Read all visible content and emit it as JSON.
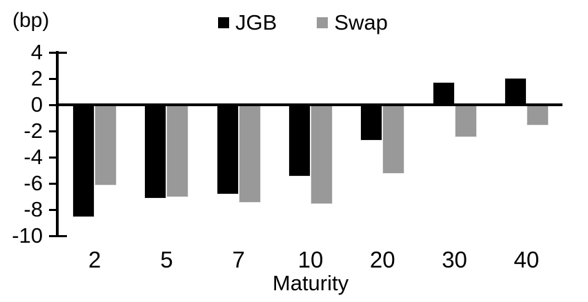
{
  "chart_data": {
    "type": "bar",
    "title": "",
    "unit_label": "(bp)",
    "xlabel": "Maturity",
    "ylabel": "",
    "categories": [
      "2",
      "5",
      "7",
      "10",
      "20",
      "30",
      "40"
    ],
    "series": [
      {
        "name": "JGB",
        "color": "#000000",
        "values": [
          -8.5,
          -7.1,
          -6.8,
          -5.4,
          -2.7,
          1.7,
          2.0
        ]
      },
      {
        "name": "Swap",
        "color": "#999999",
        "values": [
          -6.1,
          -7.0,
          -7.4,
          -7.5,
          -5.2,
          -2.4,
          -1.5
        ]
      }
    ],
    "ylim": [
      -10,
      4
    ],
    "ytick_interval": 2,
    "yticks": [
      4,
      2,
      0,
      -2,
      -4,
      -6,
      -8,
      -10
    ],
    "grid": false,
    "legend_position": "top-center",
    "axis_color": "#000000",
    "background_color": "#ffffff"
  }
}
